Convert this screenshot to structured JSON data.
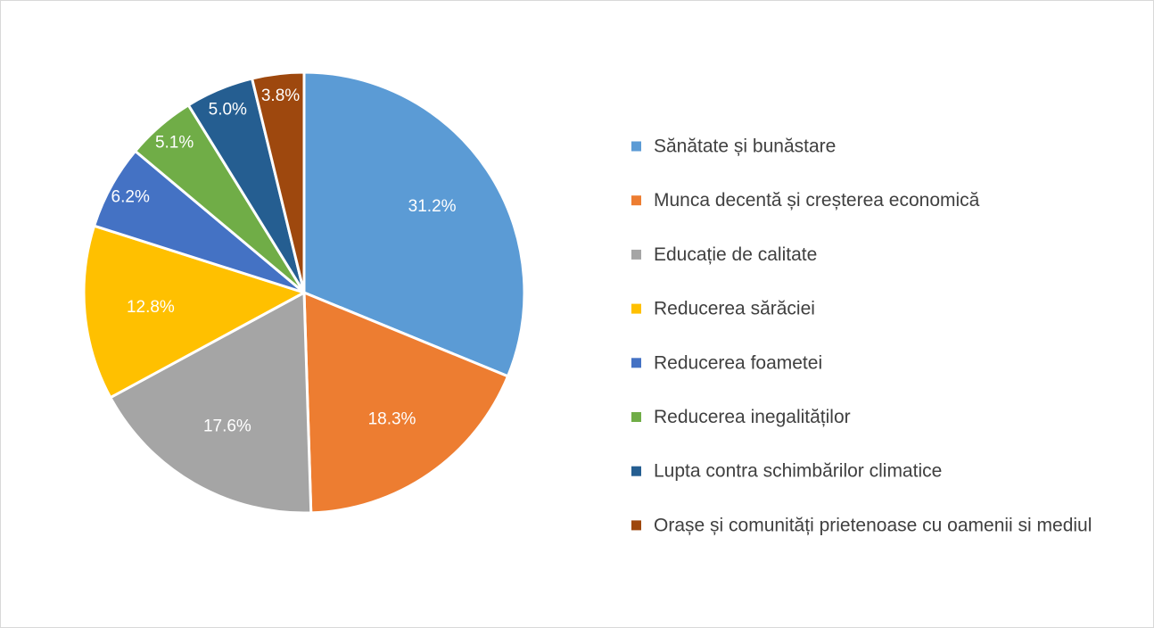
{
  "chart_data": {
    "type": "pie",
    "categories": [
      "Sănătate și bunăstare",
      "Munca decentă și creșterea economică",
      "Educație de calitate",
      "Reducerea sărăciei",
      "Reducerea foametei",
      "Reducerea inegalităților",
      "Lupta contra schimbărilor climatice",
      "Orașe și comunități prietenoase cu oamenii si mediul"
    ],
    "values": [
      31.2,
      18.3,
      17.6,
      12.8,
      6.2,
      5.1,
      5.0,
      3.8
    ],
    "labels": [
      "31.2%",
      "18.3%",
      "17.6%",
      "12.8%",
      "6.2%",
      "5.1%",
      "5.0%",
      "3.8%"
    ],
    "colors": [
      "#5B9BD5",
      "#ED7D31",
      "#A5A5A5",
      "#FFC000",
      "#4472C4",
      "#70AD47",
      "#255E91",
      "#9E480E"
    ],
    "title": "",
    "legend_position": "right"
  }
}
